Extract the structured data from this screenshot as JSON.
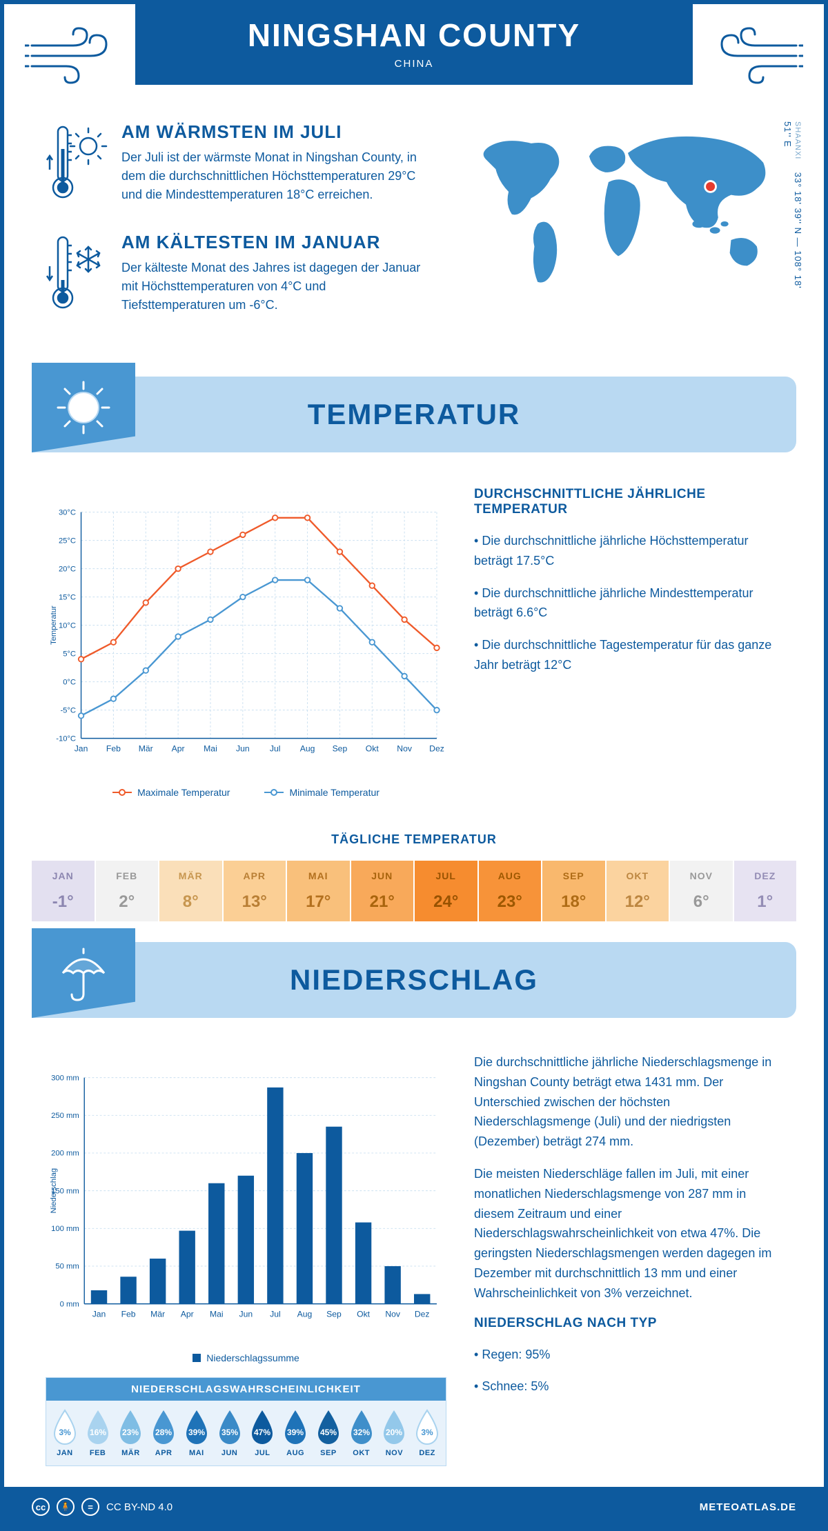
{
  "header": {
    "title": "NINGSHAN COUNTY",
    "subtitle": "CHINA"
  },
  "coords": {
    "region": "SHAANXI",
    "text": "33° 18' 39'' N — 108° 18' 51'' E"
  },
  "facts": {
    "warm": {
      "title": "AM WÄRMSTEN IM JULI",
      "text": "Der Juli ist der wärmste Monat in Ningshan County, in dem die durchschnittlichen Höchsttemperaturen 29°C und die Mindesttemperaturen 18°C erreichen."
    },
    "cold": {
      "title": "AM KÄLTESTEN IM JANUAR",
      "text": "Der kälteste Monat des Jahres ist dagegen der Januar mit Höchsttemperaturen von 4°C und Tiefsttemperaturen um -6°C."
    }
  },
  "temperature": {
    "banner": "TEMPERATUR",
    "infoTitle": "DURCHSCHNITTLICHE JÄHRLICHE TEMPERATUR",
    "infoItems": [
      "Die durchschnittliche jährliche Höchsttemperatur beträgt 17.5°C",
      "Die durchschnittliche jährliche Mindesttemperatur beträgt 6.6°C",
      "Die durchschnittliche Tagestemperatur für das ganze Jahr beträgt 12°C"
    ],
    "chart": {
      "months": [
        "Jan",
        "Feb",
        "Mär",
        "Apr",
        "Mai",
        "Jun",
        "Jul",
        "Aug",
        "Sep",
        "Okt",
        "Nov",
        "Dez"
      ],
      "max": [
        4,
        7,
        14,
        20,
        23,
        26,
        29,
        29,
        23,
        17,
        11,
        6
      ],
      "min": [
        -6,
        -3,
        2,
        8,
        11,
        15,
        18,
        18,
        13,
        7,
        1,
        -5
      ],
      "ylim": [
        -10,
        30
      ],
      "ystep": 5,
      "maxColor": "#ef5a2a",
      "minColor": "#4997d2",
      "gridColor": "#c9dff0",
      "labelColor": "#0d5a9e",
      "yAxisLabel": "Temperatur",
      "legendMax": "Maximale Temperatur",
      "legendMin": "Minimale Temperatur"
    },
    "dailyTitle": "TÄGLICHE TEMPERATUR",
    "daily": {
      "months": [
        "JAN",
        "FEB",
        "MÄR",
        "APR",
        "MAI",
        "JUN",
        "JUL",
        "AUG",
        "SEP",
        "OKT",
        "NOV",
        "DEZ"
      ],
      "values": [
        "-1°",
        "2°",
        "8°",
        "13°",
        "17°",
        "21°",
        "24°",
        "23°",
        "18°",
        "12°",
        "6°",
        "1°"
      ],
      "bgColors": [
        "#e3e0f0",
        "#f2f2f2",
        "#fadfb9",
        "#fbcf95",
        "#f9c07b",
        "#f8a95a",
        "#f68c2f",
        "#f79339",
        "#f9b86d",
        "#fbd39f",
        "#f2f2f2",
        "#e7e3f2"
      ],
      "textColors": [
        "#8c86b0",
        "#999",
        "#c7964f",
        "#b97f35",
        "#b3701e",
        "#a9640d",
        "#985200",
        "#9e5800",
        "#af6c16",
        "#bc8640",
        "#999",
        "#948db5"
      ]
    }
  },
  "precipitation": {
    "banner": "NIEDERSCHLAG",
    "paragraphs": [
      "Die durchschnittliche jährliche Niederschlagsmenge in Ningshan County beträgt etwa 1431 mm. Der Unterschied zwischen der höchsten Niederschlagsmenge (Juli) und der niedrigsten (Dezember) beträgt 274 mm.",
      "Die meisten Niederschläge fallen im Juli, mit einer monatlichen Niederschlagsmenge von 287 mm in diesem Zeitraum und einer Niederschlagswahrscheinlichkeit von etwa 47%. Die geringsten Niederschlagsmengen werden dagegen im Dezember mit durchschnittlich 13 mm und einer Wahrscheinlichkeit von 3% verzeichnet."
    ],
    "byTypeTitle": "NIEDERSCHLAG NACH TYP",
    "byType": [
      "Regen: 95%",
      "Schnee: 5%"
    ],
    "chart": {
      "months": [
        "Jan",
        "Feb",
        "Mär",
        "Apr",
        "Mai",
        "Jun",
        "Jul",
        "Aug",
        "Sep",
        "Okt",
        "Nov",
        "Dez"
      ],
      "values": [
        18,
        36,
        60,
        97,
        160,
        170,
        287,
        200,
        235,
        108,
        50,
        13
      ],
      "ylim": [
        0,
        300
      ],
      "ystep": 50,
      "barColor": "#0d5a9e",
      "gridColor": "#c9dff0",
      "yAxisLabel": "Niederschlag",
      "legend": "Niederschlagssumme"
    },
    "probTitle": "NIEDERSCHLAGSWAHRSCHEINLICHKEIT",
    "prob": {
      "months": [
        "JAN",
        "FEB",
        "MÄR",
        "APR",
        "MAI",
        "JUN",
        "JUL",
        "AUG",
        "SEP",
        "OKT",
        "NOV",
        "DEZ"
      ],
      "values": [
        "3%",
        "16%",
        "23%",
        "28%",
        "39%",
        "35%",
        "47%",
        "39%",
        "45%",
        "32%",
        "20%",
        "3%"
      ],
      "fillColors": [
        "#ffffff",
        "#a9d3ef",
        "#7fbde4",
        "#4997d2",
        "#1f73b8",
        "#3a8ac7",
        "#0d5a9e",
        "#1f73b8",
        "#13609f",
        "#3f8fca",
        "#93c8ea",
        "#ffffff"
      ],
      "textColors": [
        "#4997d2",
        "#fff",
        "#fff",
        "#fff",
        "#fff",
        "#fff",
        "#fff",
        "#fff",
        "#fff",
        "#fff",
        "#fff",
        "#4997d2"
      ],
      "strokeColors": [
        "#a9d3ef",
        "none",
        "none",
        "none",
        "none",
        "none",
        "none",
        "none",
        "none",
        "none",
        "none",
        "#a9d3ef"
      ]
    }
  },
  "footer": {
    "license": "CC BY-ND 4.0",
    "site": "METEOATLAS.DE"
  },
  "colors": {
    "brand": "#0d5a9e",
    "accent": "#4997d2",
    "banner": "#b9d9f2"
  },
  "mapMarker": {
    "color": "#e63b2e",
    "ring": "#ffffff"
  }
}
